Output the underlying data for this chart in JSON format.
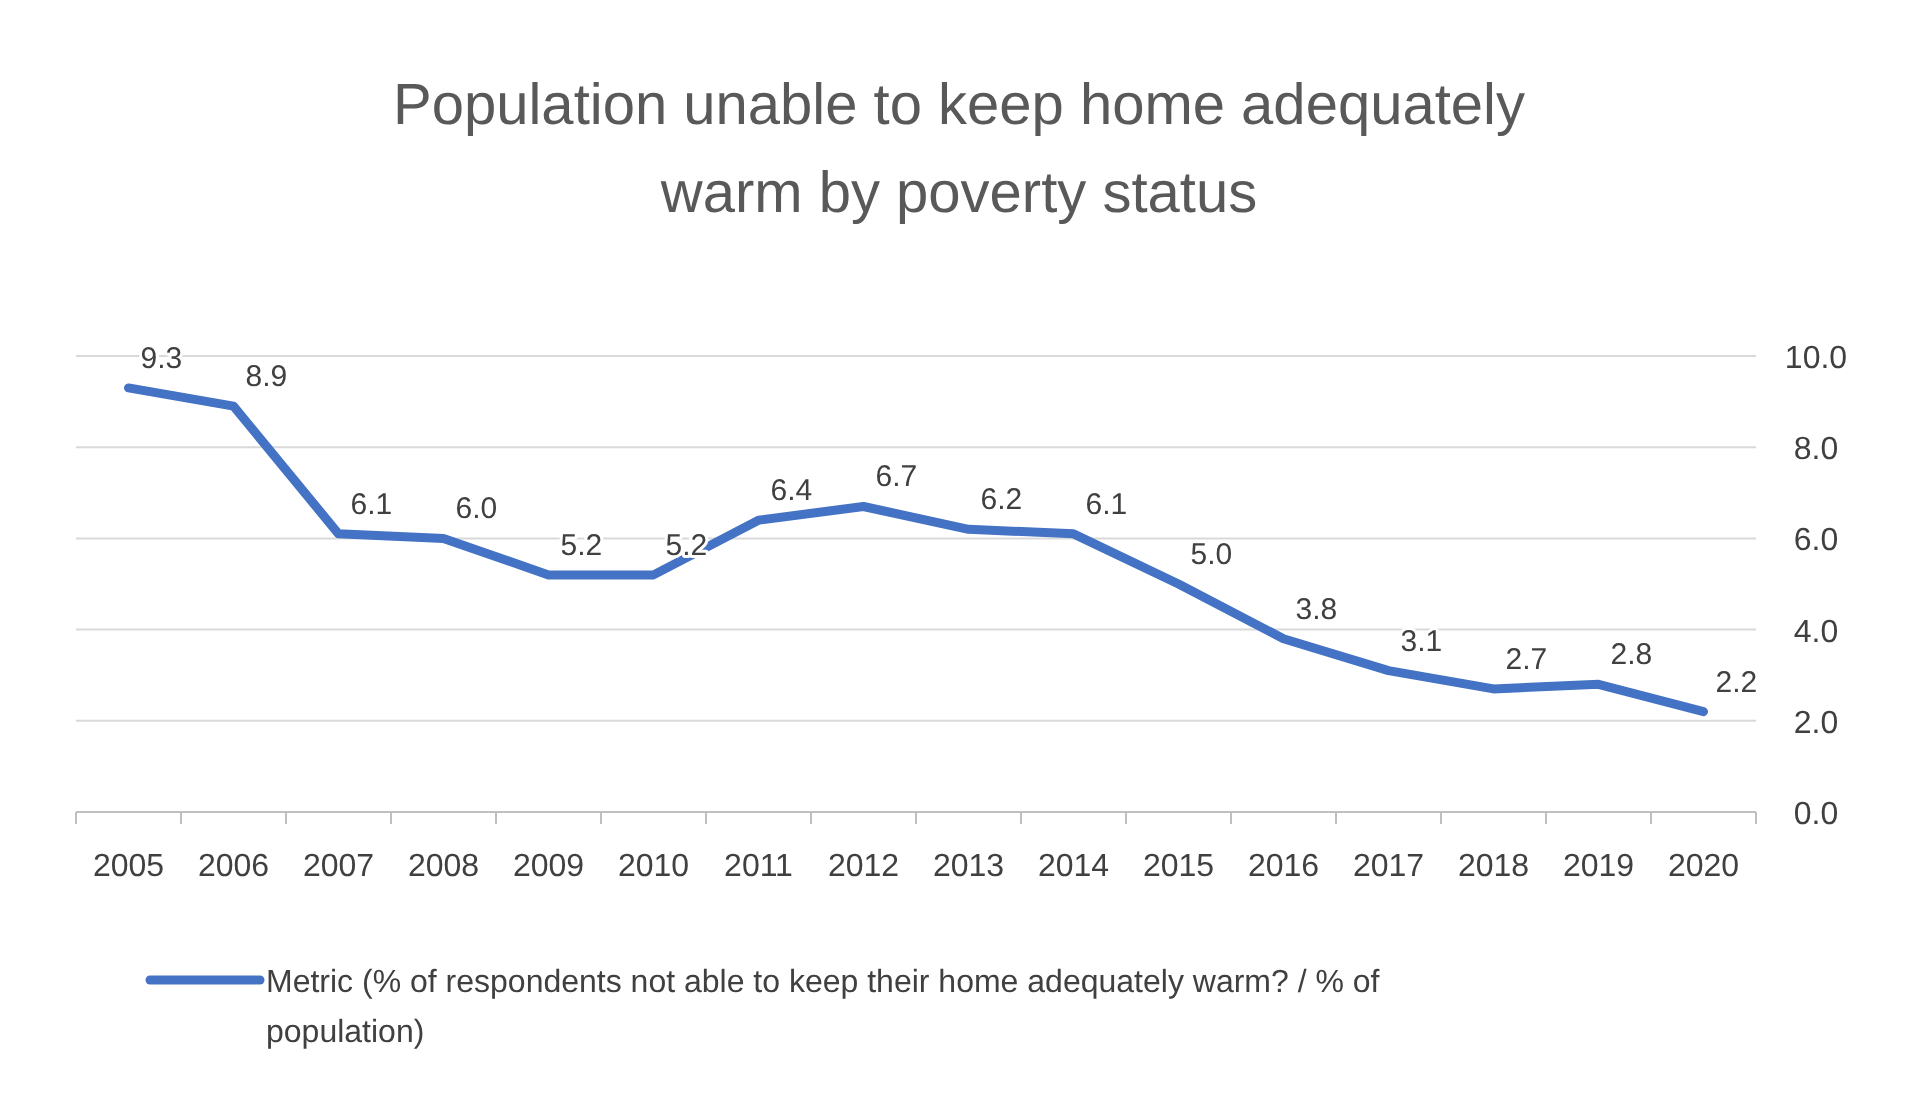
{
  "chart_data": {
    "type": "line",
    "title": "Population unable to keep home adequately warm by poverty status",
    "categories": [
      "2005",
      "2006",
      "2007",
      "2008",
      "2009",
      "2010",
      "2011",
      "2012",
      "2013",
      "2014",
      "2015",
      "2016",
      "2017",
      "2018",
      "2019",
      "2020"
    ],
    "series": [
      {
        "name": "Metric (% of respondents not able to keep their home adequately warm? / % of population)",
        "color": "#4472c4",
        "values": [
          9.3,
          8.9,
          6.1,
          6.0,
          5.2,
          5.2,
          6.4,
          6.7,
          6.2,
          6.1,
          5.0,
          3.8,
          3.1,
          2.7,
          2.8,
          2.2
        ],
        "value_labels": [
          "9.3",
          "8.9",
          "6.1",
          "6.0",
          "5.2",
          "5.2",
          "6.4",
          "6.7",
          "6.2",
          "6.1",
          "5.0",
          "3.8",
          "3.1",
          "2.7",
          "2.8",
          "2.2"
        ]
      }
    ],
    "ylim": [
      0,
      10
    ],
    "yticks": [
      {
        "value": 0,
        "label": "0.0"
      },
      {
        "value": 2,
        "label": "2.0"
      },
      {
        "value": 4,
        "label": "4.0"
      },
      {
        "value": 6,
        "label": "6.0"
      },
      {
        "value": 8,
        "label": "8.0"
      },
      {
        "value": 10,
        "label": "10.0"
      }
    ],
    "grid": "y",
    "legend": "bottom",
    "marker": "none",
    "line_style": "solid"
  }
}
